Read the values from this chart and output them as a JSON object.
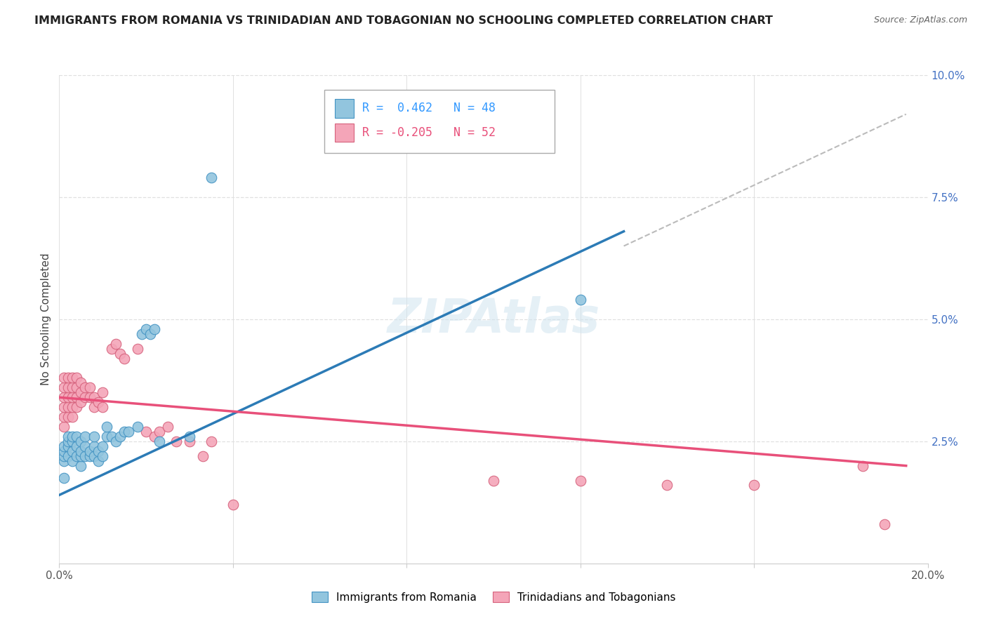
{
  "title": "IMMIGRANTS FROM ROMANIA VS TRINIDADIAN AND TOBAGONIAN NO SCHOOLING COMPLETED CORRELATION CHART",
  "source": "Source: ZipAtlas.com",
  "ylabel": "No Schooling Completed",
  "xlim": [
    0.0,
    0.2
  ],
  "ylim": [
    0.0,
    0.1
  ],
  "xticks": [
    0.0,
    0.04,
    0.08,
    0.12,
    0.16,
    0.2
  ],
  "xtick_labels": [
    "0.0%",
    "",
    "",
    "",
    "",
    "20.0%"
  ],
  "yticks": [
    0.0,
    0.025,
    0.05,
    0.075,
    0.1
  ],
  "ytick_labels_right": [
    "",
    "2.5%",
    "5.0%",
    "7.5%",
    "10.0%"
  ],
  "legend_r1_text": "R =  0.462   N = 48",
  "legend_r2_text": "R = -0.205   N = 52",
  "color_romania": "#92c5de",
  "color_trinidad": "#f4a5b8",
  "edge_romania": "#4393c3",
  "edge_trinidad": "#d6617c",
  "line_color_romania": "#2c7bb6",
  "line_color_trinidad": "#d7191c",
  "line_color_trinidad_hex": "#e8507a",
  "line_color_dashed": "#bbbbbb",
  "watermark": "ZIPAtlas",
  "romania_scatter": [
    [
      0.001,
      0.0175
    ],
    [
      0.001,
      0.021
    ],
    [
      0.001,
      0.022
    ],
    [
      0.001,
      0.023
    ],
    [
      0.001,
      0.024
    ],
    [
      0.002,
      0.022
    ],
    [
      0.002,
      0.024
    ],
    [
      0.002,
      0.025
    ],
    [
      0.002,
      0.026
    ],
    [
      0.003,
      0.021
    ],
    [
      0.003,
      0.023
    ],
    [
      0.003,
      0.025
    ],
    [
      0.003,
      0.026
    ],
    [
      0.004,
      0.022
    ],
    [
      0.004,
      0.024
    ],
    [
      0.004,
      0.026
    ],
    [
      0.005,
      0.02
    ],
    [
      0.005,
      0.022
    ],
    [
      0.005,
      0.023
    ],
    [
      0.005,
      0.025
    ],
    [
      0.006,
      0.022
    ],
    [
      0.006,
      0.024
    ],
    [
      0.006,
      0.026
    ],
    [
      0.007,
      0.022
    ],
    [
      0.007,
      0.023
    ],
    [
      0.008,
      0.022
    ],
    [
      0.008,
      0.024
    ],
    [
      0.008,
      0.026
    ],
    [
      0.009,
      0.021
    ],
    [
      0.009,
      0.023
    ],
    [
      0.01,
      0.022
    ],
    [
      0.01,
      0.024
    ],
    [
      0.011,
      0.026
    ],
    [
      0.011,
      0.028
    ],
    [
      0.012,
      0.026
    ],
    [
      0.013,
      0.025
    ],
    [
      0.014,
      0.026
    ],
    [
      0.015,
      0.027
    ],
    [
      0.016,
      0.027
    ],
    [
      0.018,
      0.028
    ],
    [
      0.019,
      0.047
    ],
    [
      0.02,
      0.048
    ],
    [
      0.021,
      0.047
    ],
    [
      0.022,
      0.048
    ],
    [
      0.023,
      0.025
    ],
    [
      0.03,
      0.026
    ],
    [
      0.035,
      0.079
    ],
    [
      0.12,
      0.054
    ]
  ],
  "trinidad_scatter": [
    [
      0.001,
      0.028
    ],
    [
      0.001,
      0.03
    ],
    [
      0.001,
      0.032
    ],
    [
      0.001,
      0.034
    ],
    [
      0.001,
      0.036
    ],
    [
      0.001,
      0.038
    ],
    [
      0.002,
      0.03
    ],
    [
      0.002,
      0.032
    ],
    [
      0.002,
      0.034
    ],
    [
      0.002,
      0.036
    ],
    [
      0.002,
      0.038
    ],
    [
      0.003,
      0.03
    ],
    [
      0.003,
      0.032
    ],
    [
      0.003,
      0.034
    ],
    [
      0.003,
      0.036
    ],
    [
      0.003,
      0.038
    ],
    [
      0.004,
      0.032
    ],
    [
      0.004,
      0.034
    ],
    [
      0.004,
      0.036
    ],
    [
      0.004,
      0.038
    ],
    [
      0.005,
      0.033
    ],
    [
      0.005,
      0.035
    ],
    [
      0.005,
      0.037
    ],
    [
      0.006,
      0.034
    ],
    [
      0.006,
      0.036
    ],
    [
      0.007,
      0.034
    ],
    [
      0.007,
      0.036
    ],
    [
      0.008,
      0.032
    ],
    [
      0.008,
      0.034
    ],
    [
      0.009,
      0.033
    ],
    [
      0.01,
      0.032
    ],
    [
      0.01,
      0.035
    ],
    [
      0.012,
      0.044
    ],
    [
      0.013,
      0.045
    ],
    [
      0.014,
      0.043
    ],
    [
      0.015,
      0.042
    ],
    [
      0.018,
      0.044
    ],
    [
      0.02,
      0.027
    ],
    [
      0.022,
      0.026
    ],
    [
      0.023,
      0.027
    ],
    [
      0.025,
      0.028
    ],
    [
      0.027,
      0.025
    ],
    [
      0.03,
      0.025
    ],
    [
      0.033,
      0.022
    ],
    [
      0.035,
      0.025
    ],
    [
      0.04,
      0.012
    ],
    [
      0.1,
      0.017
    ],
    [
      0.12,
      0.017
    ],
    [
      0.14,
      0.016
    ],
    [
      0.16,
      0.016
    ],
    [
      0.185,
      0.02
    ],
    [
      0.19,
      0.008
    ]
  ],
  "romania_line": [
    [
      0.0,
      0.014
    ],
    [
      0.13,
      0.068
    ]
  ],
  "trinidad_line": [
    [
      0.0,
      0.034
    ],
    [
      0.195,
      0.02
    ]
  ],
  "dashed_line": [
    [
      0.13,
      0.065
    ],
    [
      0.195,
      0.092
    ]
  ],
  "background_color": "#ffffff",
  "grid_color": "#e0e0e0"
}
